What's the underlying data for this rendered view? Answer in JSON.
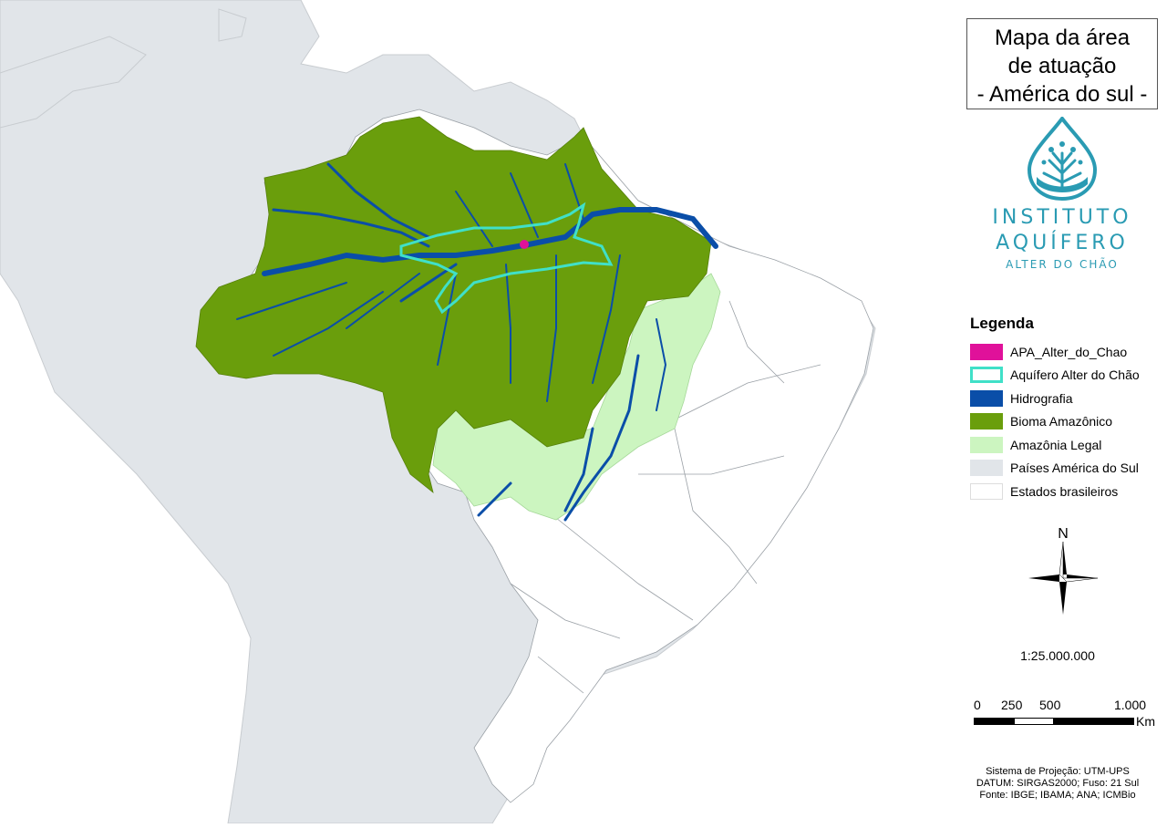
{
  "title": {
    "line1": "Mapa da área",
    "line2": "de atuação",
    "line3": "- América do sul -"
  },
  "logo": {
    "word1": "INSTITUTO",
    "word2": "AQUÍFERO",
    "subtitle": "ALTER DO CHÃO",
    "icon": "water-drop-tree-icon"
  },
  "legend": {
    "title": "Legenda",
    "items": [
      {
        "label": "APA_Alter_do_Chao",
        "color": "#e0119a",
        "style": "fill"
      },
      {
        "label": "Aquífero Alter do Chão",
        "color": "#40e0c8",
        "style": "outline"
      },
      {
        "label": "Hidrografia",
        "color": "#0a4ea8",
        "style": "fill"
      },
      {
        "label": "Bioma Amazônico",
        "color": "#6a9e0c",
        "style": "fill"
      },
      {
        "label": "Amazônia Legal",
        "color": "#ccf5c0",
        "style": "fill"
      },
      {
        "label": "Países América do Sul",
        "color": "#e1e5e9",
        "style": "fill"
      },
      {
        "label": "Estados brasileiros",
        "color": "#ffffff",
        "style": "fill"
      }
    ]
  },
  "north_arrow": {
    "label": "N",
    "icon": "compass-rose-icon"
  },
  "scale": {
    "ratio": "1:25.000.000",
    "ticks": [
      "0",
      "250",
      "500",
      "1.000"
    ],
    "unit": "Km"
  },
  "credits": {
    "line1": "Sistema de Projeção: UTM-UPS",
    "line2": "DATUM: SIRGAS2000; Fuso: 21 Sul",
    "line3": "Fonte: IBGE; IBAMA; ANA; ICMBio"
  },
  "colors": {
    "ocean": "#ffffff",
    "countries": "#e1e5e9",
    "brazil_states": "#ffffff",
    "legal_amazon": "#ccf5c0",
    "amazon_biome": "#6a9e0c",
    "rivers": "#0a4ea8",
    "aquifer": "#40e0c8",
    "apa": "#e0119a",
    "borders": "#b8bcc0",
    "logo": "#2a9bb3"
  }
}
